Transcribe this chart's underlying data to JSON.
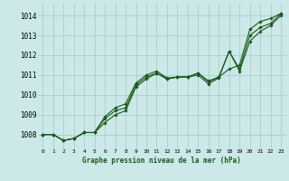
{
  "title": "Graphe pression niveau de la mer (hPa)",
  "bg_color": "#cce8e8",
  "grid_color": "#aacece",
  "line_color": "#1a5c1a",
  "marker_color": "#1a5c1a",
  "ylabel_values": [
    1008,
    1009,
    1010,
    1011,
    1012,
    1013,
    1014
  ],
  "xlim": [
    -0.5,
    23.5
  ],
  "ylim": [
    1007.3,
    1014.6
  ],
  "xtick_labels": [
    "0",
    "1",
    "2",
    "3",
    "4",
    "5",
    "6",
    "7",
    "8",
    "9",
    "10",
    "11",
    "12",
    "13",
    "14",
    "15",
    "16",
    "17",
    "18",
    "19",
    "20",
    "21",
    "22",
    "23"
  ],
  "series": [
    [
      1008.0,
      1008.0,
      1007.7,
      1007.8,
      1008.1,
      1008.1,
      1008.9,
      1009.35,
      1009.55,
      1010.6,
      1011.0,
      1011.2,
      1010.85,
      1010.9,
      1010.9,
      1011.1,
      1010.7,
      1010.9,
      1011.3,
      1011.5,
      1013.3,
      1013.7,
      1013.85,
      1014.1
    ],
    [
      1008.0,
      1008.0,
      1007.7,
      1007.8,
      1008.1,
      1008.1,
      1008.8,
      1009.2,
      1009.35,
      1010.5,
      1010.9,
      1011.1,
      1010.8,
      1010.9,
      1010.9,
      1011.1,
      1010.65,
      1010.9,
      1012.2,
      1011.3,
      1013.0,
      1013.4,
      1013.6,
      1014.1
    ],
    [
      1008.0,
      1008.0,
      1007.7,
      1007.8,
      1008.1,
      1008.1,
      1008.6,
      1009.0,
      1009.2,
      1010.4,
      1010.8,
      1011.1,
      1010.8,
      1010.9,
      1010.9,
      1011.0,
      1010.55,
      1010.85,
      1012.2,
      1011.2,
      1012.7,
      1013.2,
      1013.5,
      1014.0
    ]
  ]
}
